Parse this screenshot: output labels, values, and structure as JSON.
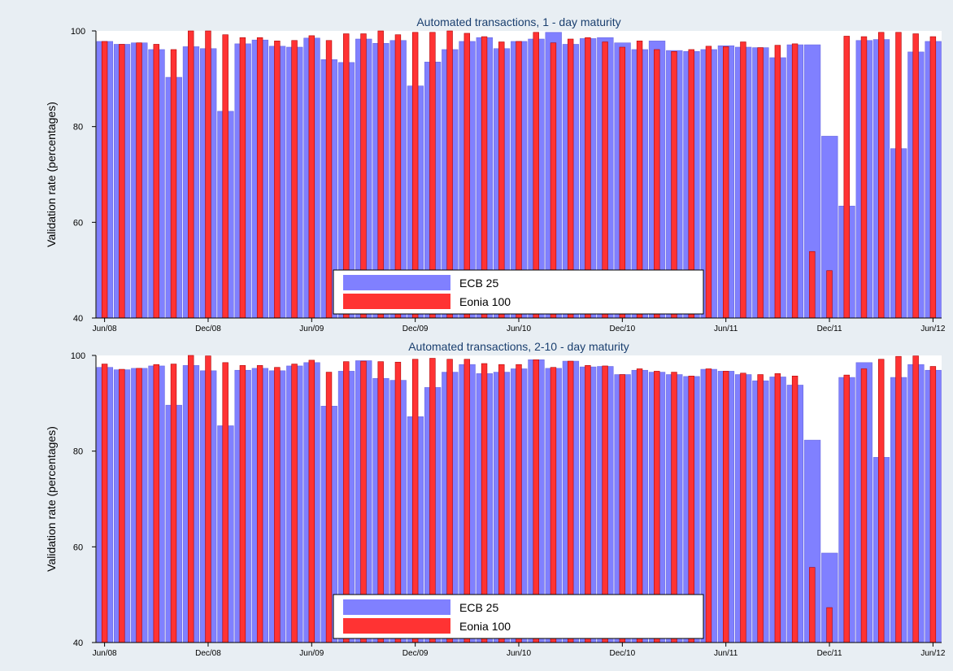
{
  "colors": {
    "background": "#e8eef3",
    "plot_background": "#ffffff",
    "ecb_fill": "#8080ff",
    "ecb_edge": "#6a6ae0",
    "eonia_fill": "#ff3333",
    "eonia_edge": "#b00000",
    "text": "#1a3f6f"
  },
  "legend_placement": "bottom-center",
  "chart_data": [
    {
      "type": "bar",
      "title": "Automated transactions, 1 - day maturity",
      "ylabel": "Validation rate (percentages)",
      "xlabel": "",
      "ylim": [
        40,
        100
      ],
      "yticks": [
        "40",
        "60",
        "80",
        "100"
      ],
      "x_tick_labels": [
        "Jun/08",
        "Dec/08",
        "Jun/09",
        "Dec/09",
        "Jun/10",
        "Dec/10",
        "Jun/11",
        "Dec/11",
        "Jun/12"
      ],
      "categories": [
        "Jun/08",
        "Jul/08",
        "Aug/08",
        "Sep/08",
        "Oct/08",
        "Nov/08",
        "Dec/08",
        "Jan/09",
        "Feb/09",
        "Mar/09",
        "Apr/09",
        "May/09",
        "Jun/09",
        "Jul/09",
        "Aug/09",
        "Sep/09",
        "Oct/09",
        "Nov/09",
        "Dec/09",
        "Jan/10",
        "Feb/10",
        "Mar/10",
        "Apr/10",
        "May/10",
        "Jun/10",
        "Jul/10",
        "Aug/10",
        "Sep/10",
        "Oct/10",
        "Nov/10",
        "Dec/10",
        "Jan/11",
        "Feb/11",
        "Mar/11",
        "Apr/11",
        "May/11",
        "Jun/11",
        "Jul/11",
        "Aug/11",
        "Sep/11",
        "Oct/11",
        "Nov/11",
        "Dec/11",
        "Jan/12",
        "Feb/12",
        "Mar/12",
        "Apr/12",
        "May/12",
        "Jun/12"
      ],
      "grid": false,
      "series": [
        {
          "name": "ECB 25",
          "values": [
            97.8,
            97.2,
            97.5,
            96.1,
            90.3,
            96.7,
            96.3,
            83.2,
            97.3,
            98.1,
            96.8,
            96.6,
            98.5,
            94.0,
            93.4,
            98.3,
            97.4,
            98.0,
            88.5,
            93.5,
            96.1,
            97.8,
            98.6,
            96.3,
            97.8,
            98.3,
            99.7,
            97.2,
            98.4,
            98.6,
            97.5,
            96.1,
            97.9,
            95.9,
            95.7,
            96.1,
            96.9,
            96.6,
            96.5,
            94.4,
            97.1,
            97.1,
            78.0,
            63.4,
            98.0,
            98.2,
            75.4,
            95.6,
            97.8
          ]
        },
        {
          "name": "Eonia 100",
          "values": [
            97.8,
            97.2,
            97.5,
            97.2,
            96.1,
            100.0,
            100.0,
            99.2,
            98.6,
            98.6,
            97.9,
            98.0,
            99.0,
            98.0,
            99.4,
            99.4,
            100.0,
            99.2,
            99.7,
            99.7,
            100.0,
            99.5,
            98.8,
            97.7,
            97.8,
            99.7,
            97.5,
            98.3,
            98.6,
            97.7,
            96.6,
            97.9,
            96.1,
            95.7,
            96.1,
            96.8,
            96.7,
            97.7,
            96.5,
            97.0,
            97.3,
            53.9,
            49.9,
            98.9,
            98.8,
            99.7,
            99.7,
            99.4,
            98.8
          ]
        }
      ]
    },
    {
      "type": "bar",
      "title": "Automated transactions, 2-10 - day maturity",
      "ylabel": "Validation rate (percentages)",
      "xlabel": "",
      "ylim": [
        40,
        100
      ],
      "yticks": [
        "40",
        "60",
        "80",
        "100"
      ],
      "x_tick_labels": [
        "Jun/08",
        "Dec/08",
        "Jun/09",
        "Dec/09",
        "Jun/10",
        "Dec/10",
        "Jun/11",
        "Dec/11",
        "Jun/12"
      ],
      "categories": [
        "Jun/08",
        "Jul/08",
        "Aug/08",
        "Sep/08",
        "Oct/08",
        "Nov/08",
        "Dec/08",
        "Jan/09",
        "Feb/09",
        "Mar/09",
        "Apr/09",
        "May/09",
        "Jun/09",
        "Jul/09",
        "Aug/09",
        "Sep/09",
        "Oct/09",
        "Nov/09",
        "Dec/09",
        "Jan/10",
        "Feb/10",
        "Mar/10",
        "Apr/10",
        "May/10",
        "Jun/10",
        "Jul/10",
        "Aug/10",
        "Sep/10",
        "Oct/10",
        "Nov/10",
        "Dec/10",
        "Jan/11",
        "Feb/11",
        "Mar/11",
        "Apr/11",
        "May/11",
        "Jun/11",
        "Jul/11",
        "Aug/11",
        "Sep/11",
        "Oct/11",
        "Nov/11",
        "Dec/11",
        "Jan/12",
        "Feb/12",
        "Mar/12",
        "Apr/12",
        "May/12",
        "Jun/12"
      ],
      "grid": false,
      "series": [
        {
          "name": "ECB 25",
          "values": [
            97.5,
            97.0,
            97.3,
            97.8,
            89.6,
            97.9,
            96.8,
            85.3,
            96.9,
            97.3,
            96.8,
            97.8,
            98.5,
            89.4,
            96.7,
            98.9,
            95.2,
            94.8,
            87.2,
            93.3,
            96.5,
            98.1,
            96.2,
            96.5,
            97.2,
            99.1,
            97.3,
            98.8,
            97.6,
            97.7,
            96.0,
            96.9,
            96.5,
            96.0,
            95.6,
            97.1,
            96.7,
            96.0,
            94.7,
            95.5,
            93.8,
            82.3,
            58.7,
            95.4,
            98.5,
            78.7,
            95.4,
            98.1,
            96.9
          ]
        },
        {
          "name": "Eonia 100",
          "values": [
            98.2,
            97.1,
            97.3,
            98.1,
            98.2,
            100.0,
            99.9,
            98.5,
            97.9,
            97.9,
            97.5,
            98.2,
            99.0,
            96.5,
            98.7,
            98.8,
            98.7,
            98.6,
            99.2,
            99.4,
            99.2,
            99.2,
            98.3,
            98.1,
            98.1,
            99.1,
            97.5,
            98.8,
            97.9,
            97.8,
            96.0,
            97.2,
            96.7,
            96.5,
            95.7,
            97.2,
            96.7,
            96.3,
            96.0,
            96.2,
            95.7,
            55.7,
            47.3,
            95.9,
            97.2,
            99.2,
            99.8,
            99.9,
            97.7
          ]
        }
      ]
    }
  ]
}
